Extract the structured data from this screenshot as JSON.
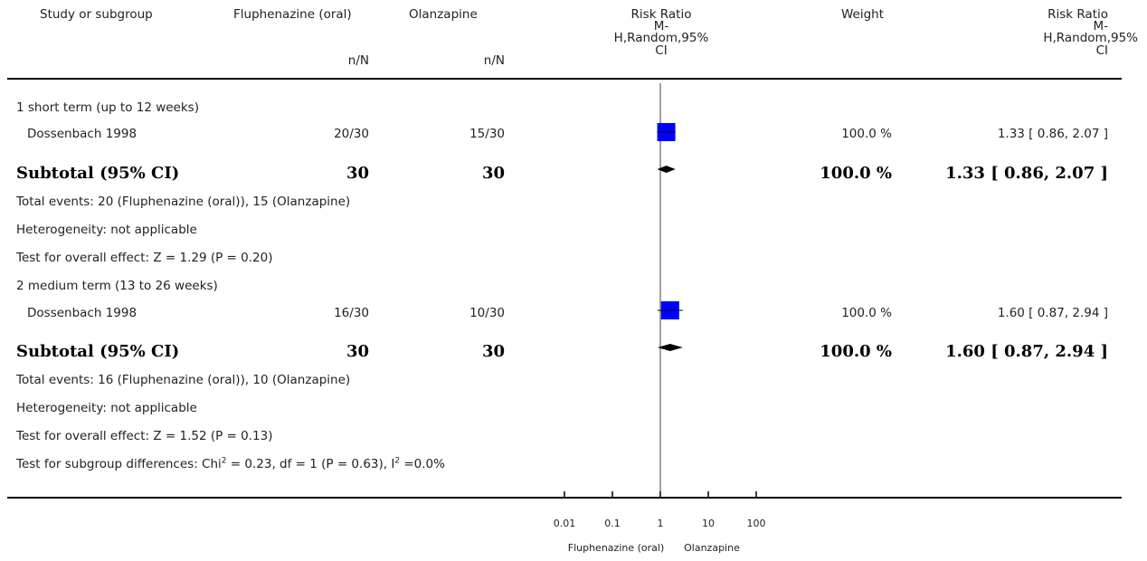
{
  "header": {
    "study": "Study or subgroup",
    "group1": "Fluphenazine (oral)",
    "group2": "Olanzapine",
    "rr_plot": "Risk Ratio",
    "rr_plot_sub1": "M-",
    "rr_plot_sub2": "H,Random,95%",
    "rr_plot_sub3": "CI",
    "weight": "Weight",
    "rr_text": "Risk Ratio",
    "rr_text_sub1": "M-",
    "rr_text_sub2": "H,Random,95%",
    "rr_text_sub3": "CI",
    "n1": "n/N",
    "n2": "n/N"
  },
  "subgroups": [
    {
      "title": "1 short term (up to 12 weeks)",
      "study": "Dossenbach 1998",
      "n1": "20/30",
      "n2": "15/30",
      "weight": "100.0 %",
      "rr": "1.33 [ 0.86, 2.07 ]",
      "subtotal_label": "Subtotal (95% CI)",
      "sub_n1": "30",
      "sub_n2": "30",
      "sub_weight": "100.0 %",
      "sub_rr": "1.33 [ 0.86, 2.07 ]",
      "events": "Total events: 20 (Fluphenazine (oral)), 15 (Olanzapine)",
      "heterogeneity": "Heterogeneity: not applicable",
      "overall": "Test for overall effect: Z = 1.29 (P = 0.20)"
    },
    {
      "title": "2 medium term (13 to 26 weeks)",
      "study": "Dossenbach 1998",
      "n1": "16/30",
      "n2": "10/30",
      "weight": "100.0 %",
      "rr": "1.60 [ 0.87, 2.94 ]",
      "subtotal_label": "Subtotal (95% CI)",
      "sub_n1": "30",
      "sub_n2": "30",
      "sub_weight": "100.0 %",
      "sub_rr": "1.60 [ 0.87, 2.94 ]",
      "events": "Total events: 16 (Fluphenazine (oral)), 10 (Olanzapine)",
      "heterogeneity": "Heterogeneity: not applicable",
      "overall": "Test for overall effect: Z = 1.52 (P = 0.13)"
    }
  ],
  "subgroup_diff": {
    "prefix": "Test for subgroup differences: Chi",
    "sup1": "2",
    "middle": " = 0.23, df = 1 (P = 0.63), I",
    "sup2": "2",
    "suffix": " =0.0%"
  },
  "colors": {
    "box": "#0000ff",
    "line": "#000000"
  },
  "chart_data": {
    "type": "forest",
    "xscale": "log",
    "xlim": [
      0.01,
      100
    ],
    "ticks": [
      0.01,
      0.1,
      1,
      10,
      100
    ],
    "tick_labels": [
      "0.01",
      "0.1",
      "1",
      "10",
      "100"
    ],
    "null_value": 1,
    "favours_left": "Fluphenazine (oral)",
    "favours_right": "Olanzapine",
    "studies": [
      {
        "name": "Dossenbach 1998",
        "subgroup": 1,
        "rr": 1.33,
        "lo": 0.86,
        "hi": 2.07,
        "weight": 100.0
      },
      {
        "name": "Dossenbach 1998",
        "subgroup": 2,
        "rr": 1.6,
        "lo": 0.87,
        "hi": 2.94,
        "weight": 100.0
      }
    ],
    "subtotals": [
      {
        "subgroup": 1,
        "rr": 1.33,
        "lo": 0.86,
        "hi": 2.07
      },
      {
        "subgroup": 2,
        "rr": 1.6,
        "lo": 0.87,
        "hi": 2.94
      }
    ]
  }
}
